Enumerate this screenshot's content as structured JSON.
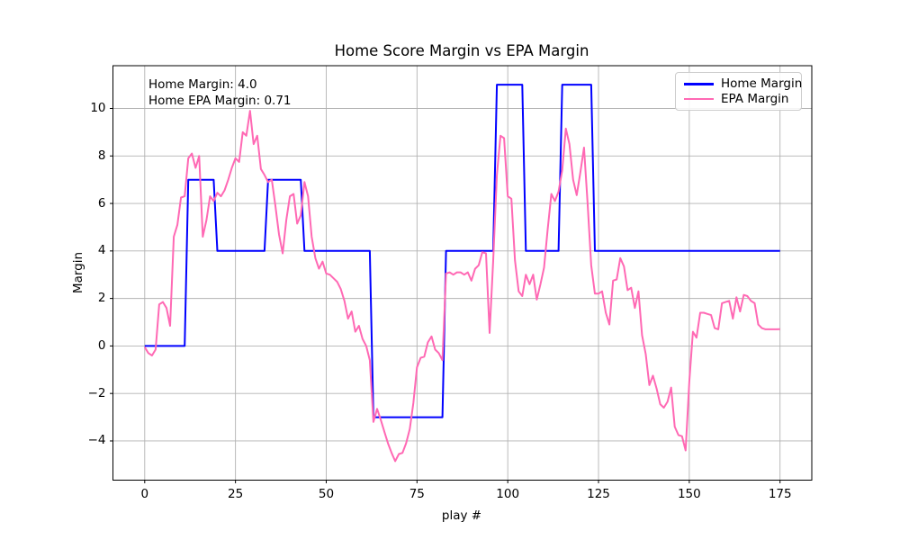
{
  "figure": {
    "title": "Home Score Margin vs EPA Margin",
    "xlabel": "play #",
    "ylabel": "Margin",
    "annotation_line1": "Home Margin: 4.0",
    "annotation_line2": "Home EPA Margin: 0.71",
    "colors": {
      "home_margin": "#0000ff",
      "epa_margin": "#ff69b4",
      "grid": "#b2b2b2",
      "axes_edge": "#000000",
      "background": "#ffffff"
    }
  },
  "legend": {
    "position": "upper right",
    "entries": [
      {
        "label": "Home Margin",
        "color": "#0000ff"
      },
      {
        "label": "EPA Margin",
        "color": "#ff69b4"
      }
    ]
  },
  "chart_data": {
    "type": "line",
    "title": "Home Score Margin vs EPA Margin",
    "xlabel": "play #",
    "ylabel": "Margin",
    "x_description": "play index 0 to 175, step 1",
    "xlim": [
      -8.75,
      183.75
    ],
    "ylim": [
      -5.65,
      11.8
    ],
    "xticks": [
      0,
      25,
      50,
      75,
      100,
      125,
      150,
      175
    ],
    "xtick_labels": [
      "0",
      "25",
      "50",
      "75",
      "100",
      "125",
      "150",
      "175"
    ],
    "yticks": [
      -4,
      -2,
      0,
      2,
      4,
      6,
      8,
      10
    ],
    "ytick_labels": [
      "−4",
      "−2",
      "0",
      "2",
      "4",
      "6",
      "8",
      "10"
    ],
    "grid": true,
    "legend_position": "upper right",
    "series": [
      {
        "name": "Home Margin",
        "color": "#0000ff",
        "values": [
          0,
          0,
          0,
          0,
          0,
          0,
          0,
          0,
          0,
          0,
          0,
          0,
          7,
          7,
          7,
          7,
          7,
          7,
          7,
          7,
          4,
          4,
          4,
          4,
          4,
          4,
          4,
          4,
          4,
          4,
          4,
          4,
          4,
          4,
          7,
          7,
          7,
          7,
          7,
          7,
          7,
          7,
          7,
          7,
          4,
          4,
          4,
          4,
          4,
          4,
          4,
          4,
          4,
          4,
          4,
          4,
          4,
          4,
          4,
          4,
          4,
          4,
          4,
          -3,
          -3,
          -3,
          -3,
          -3,
          -3,
          -3,
          -3,
          -3,
          -3,
          -3,
          -3,
          -3,
          -3,
          -3,
          -3,
          -3,
          -3,
          -3,
          -3,
          4,
          4,
          4,
          4,
          4,
          4,
          4,
          4,
          4,
          4,
          4,
          4,
          4,
          4,
          11,
          11,
          11,
          11,
          11,
          11,
          11,
          11,
          4,
          4,
          4,
          4,
          4,
          4,
          4,
          4,
          4,
          4,
          11,
          11,
          11,
          11,
          11,
          11,
          11,
          11,
          11,
          4,
          4,
          4,
          4,
          4,
          4,
          4,
          4,
          4,
          4,
          4,
          4,
          4,
          4,
          4,
          4,
          4,
          4,
          4,
          4,
          4,
          4,
          4,
          4,
          4,
          4,
          4,
          4,
          4,
          4,
          4,
          4,
          4,
          4,
          4,
          4,
          4,
          4,
          4,
          4,
          4,
          4,
          4,
          4,
          4,
          4,
          4,
          4,
          4,
          4,
          4,
          4
        ]
      },
      {
        "name": "EPA Margin",
        "color": "#ff69b4",
        "values": [
          -0.05,
          -0.3,
          -0.4,
          -0.15,
          1.75,
          1.85,
          1.6,
          0.85,
          4.6,
          5.1,
          6.25,
          6.3,
          7.9,
          8.1,
          7.5,
          8.0,
          4.6,
          5.3,
          6.3,
          6.1,
          6.45,
          6.3,
          6.55,
          7.0,
          7.5,
          7.9,
          7.75,
          9.0,
          8.85,
          9.9,
          8.5,
          8.85,
          7.45,
          7.2,
          6.9,
          7.0,
          5.9,
          4.7,
          3.9,
          5.3,
          6.3,
          6.4,
          5.15,
          5.5,
          6.9,
          6.3,
          4.6,
          3.7,
          3.25,
          3.55,
          3.05,
          3.0,
          2.85,
          2.7,
          2.4,
          1.9,
          1.15,
          1.45,
          0.6,
          0.85,
          0.3,
          0.0,
          -0.6,
          -3.2,
          -2.65,
          -3.1,
          -3.6,
          -4.1,
          -4.5,
          -4.85,
          -4.55,
          -4.5,
          -4.1,
          -3.5,
          -2.4,
          -0.9,
          -0.5,
          -0.45,
          0.15,
          0.4,
          -0.15,
          -0.3,
          -0.6,
          3.05,
          3.1,
          3.0,
          3.1,
          3.1,
          3.0,
          3.1,
          2.75,
          3.25,
          3.4,
          3.95,
          3.9,
          0.55,
          3.6,
          7.2,
          8.85,
          8.75,
          6.3,
          6.2,
          3.6,
          2.3,
          2.1,
          3.0,
          2.6,
          3.0,
          1.95,
          2.6,
          3.3,
          4.9,
          6.4,
          6.1,
          6.5,
          7.4,
          9.15,
          8.5,
          7.0,
          6.35,
          7.3,
          8.35,
          6.0,
          3.4,
          2.2,
          2.2,
          2.3,
          1.4,
          0.9,
          2.75,
          2.8,
          3.7,
          3.35,
          2.35,
          2.45,
          1.6,
          2.3,
          0.45,
          -0.35,
          -1.65,
          -1.25,
          -1.8,
          -2.45,
          -2.6,
          -2.35,
          -1.75,
          -3.4,
          -3.75,
          -3.8,
          -4.4,
          -1.5,
          0.6,
          0.35,
          1.4,
          1.4,
          1.35,
          1.3,
          0.75,
          0.7,
          1.8,
          1.85,
          1.9,
          1.15,
          2.05,
          1.45,
          2.15,
          2.1,
          1.9,
          1.8,
          0.9,
          0.75,
          0.7,
          0.7,
          0.7,
          0.7,
          0.71
        ]
      }
    ]
  }
}
